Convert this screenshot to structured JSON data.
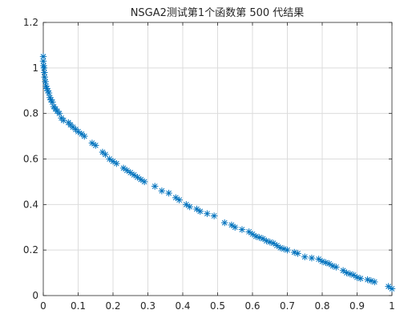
{
  "chart_data": {
    "type": "scatter",
    "title": "NSGA2测试第1个函数第 500 代结果",
    "xlabel": "",
    "ylabel": "",
    "xlim": [
      0,
      1
    ],
    "ylim": [
      0,
      1.2
    ],
    "x_ticks": [
      0,
      0.1,
      0.2,
      0.3,
      0.4,
      0.5,
      0.6,
      0.7,
      0.8,
      0.9,
      1
    ],
    "x_tick_labels": [
      "0",
      "0.1",
      "0.2",
      "0.3",
      "0.4",
      "0.5",
      "0.6",
      "0.7",
      "0.8",
      "0.9",
      "1"
    ],
    "y_ticks": [
      0,
      0.2,
      0.4,
      0.6,
      0.8,
      1,
      1.2
    ],
    "y_tick_labels": [
      "0",
      "0.2",
      "0.4",
      "0.6",
      "0.8",
      "1",
      "1.2"
    ],
    "grid": true,
    "marker": "asterisk",
    "colors": {
      "marker": "#0072BD",
      "grid": "#dcdcdc",
      "axis": "#262626"
    },
    "series": [
      {
        "x": [
          0.0,
          0.0,
          0.001,
          0.002,
          0.003,
          0.004,
          0.006,
          0.008,
          0.01,
          0.013,
          0.016,
          0.019,
          0.022,
          0.026,
          0.03,
          0.035,
          0.04,
          0.046,
          0.052,
          0.058,
          0.072,
          0.078,
          0.085,
          0.093,
          0.1,
          0.11,
          0.118,
          0.14,
          0.15,
          0.17,
          0.178,
          0.19,
          0.2,
          0.21,
          0.23,
          0.24,
          0.25,
          0.26,
          0.27,
          0.28,
          0.29,
          0.32,
          0.34,
          0.36,
          0.38,
          0.39,
          0.41,
          0.42,
          0.44,
          0.45,
          0.47,
          0.49,
          0.52,
          0.54,
          0.55,
          0.57,
          0.59,
          0.6,
          0.61,
          0.62,
          0.63,
          0.64,
          0.65,
          0.66,
          0.67,
          0.68,
          0.69,
          0.7,
          0.72,
          0.73,
          0.75,
          0.77,
          0.79,
          0.8,
          0.81,
          0.82,
          0.83,
          0.84,
          0.86,
          0.87,
          0.88,
          0.89,
          0.9,
          0.91,
          0.93,
          0.94,
          0.95,
          0.99,
          1.0
        ],
        "y": [
          1.05,
          1.03,
          1.01,
          1.0,
          0.98,
          0.96,
          0.94,
          0.92,
          0.91,
          0.9,
          0.89,
          0.87,
          0.86,
          0.85,
          0.83,
          0.82,
          0.81,
          0.8,
          0.78,
          0.77,
          0.76,
          0.75,
          0.74,
          0.73,
          0.72,
          0.71,
          0.7,
          0.67,
          0.66,
          0.63,
          0.62,
          0.6,
          0.59,
          0.58,
          0.56,
          0.55,
          0.54,
          0.53,
          0.52,
          0.51,
          0.5,
          0.48,
          0.46,
          0.45,
          0.43,
          0.42,
          0.4,
          0.39,
          0.38,
          0.37,
          0.36,
          0.35,
          0.32,
          0.31,
          0.3,
          0.29,
          0.28,
          0.27,
          0.26,
          0.255,
          0.25,
          0.24,
          0.235,
          0.23,
          0.22,
          0.21,
          0.205,
          0.2,
          0.19,
          0.185,
          0.17,
          0.165,
          0.16,
          0.15,
          0.145,
          0.14,
          0.13,
          0.125,
          0.11,
          0.1,
          0.095,
          0.09,
          0.08,
          0.075,
          0.07,
          0.065,
          0.06,
          0.04,
          0.03
        ]
      }
    ]
  }
}
